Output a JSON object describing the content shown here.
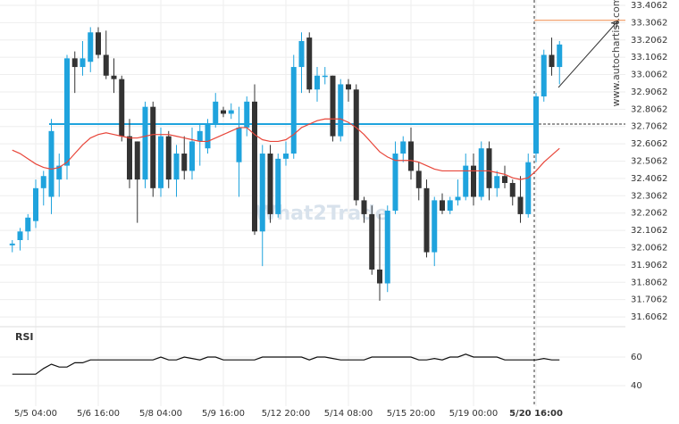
{
  "chart_data": {
    "type": "candlestick",
    "categories": [
      null,
      null,
      null,
      "5/5 04:00",
      null,
      null,
      null,
      null,
      null,
      null,
      null,
      "5/6 16:00",
      null,
      null,
      null,
      null,
      null,
      null,
      null,
      "5/8 04:00",
      null,
      null,
      null,
      null,
      null,
      null,
      null,
      "5/9 16:00",
      null,
      null,
      null,
      null,
      null,
      null,
      null,
      "5/12 20:00",
      null,
      null,
      null,
      null,
      null,
      null,
      null,
      "5/14 08:00",
      null,
      null,
      null,
      null,
      null,
      null,
      null,
      "5/15 20:00",
      null,
      null,
      null,
      null,
      null,
      null,
      null,
      "5/19 00:00",
      null,
      null,
      null,
      null,
      null,
      null,
      null,
      "5/20 16:00",
      null,
      null,
      null
    ],
    "open": [
      32.02,
      32.05,
      32.1,
      32.16,
      32.35,
      32.3,
      32.4,
      32.48,
      33.1,
      33.05,
      33.08,
      33.25,
      33.12,
      33.0,
      32.98,
      32.65,
      32.62,
      32.4,
      32.82,
      32.35,
      32.65,
      32.4,
      32.55,
      32.45,
      32.62,
      32.58,
      32.72,
      32.8,
      32.78,
      32.5,
      32.7,
      32.85,
      32.1,
      32.55,
      32.2,
      32.52,
      32.55,
      33.05,
      33.22,
      32.92,
      33.0,
      33.0,
      32.65,
      32.95,
      32.92,
      32.28,
      32.2,
      31.88,
      31.8,
      32.22,
      32.55,
      32.62,
      32.45,
      32.35,
      31.98,
      32.28,
      32.22,
      32.28,
      32.3,
      32.48,
      32.3,
      32.58,
      32.35,
      32.42,
      32.38,
      32.3,
      32.2,
      32.55,
      32.88,
      33.12,
      33.05
    ],
    "high": [
      32.05,
      32.12,
      32.2,
      32.4,
      32.45,
      32.75,
      32.55,
      33.12,
      33.14,
      33.2,
      33.28,
      33.28,
      33.26,
      33.1,
      33.0,
      32.75,
      32.62,
      32.85,
      32.85,
      32.7,
      32.68,
      32.6,
      32.65,
      32.7,
      32.72,
      32.75,
      32.9,
      32.82,
      32.84,
      32.82,
      32.88,
      32.95,
      32.6,
      32.6,
      32.55,
      32.62,
      33.12,
      33.25,
      33.25,
      33.05,
      33.05,
      33.0,
      32.98,
      32.98,
      32.95,
      32.3,
      32.25,
      32.2,
      32.25,
      32.62,
      32.65,
      32.7,
      32.5,
      32.4,
      32.3,
      32.32,
      32.3,
      32.4,
      32.55,
      32.55,
      32.62,
      32.62,
      32.45,
      32.48,
      32.4,
      32.42,
      32.55,
      32.9,
      33.15,
      33.22,
      33.2
    ],
    "low": [
      31.98,
      31.99,
      32.05,
      32.12,
      32.25,
      32.2,
      32.3,
      32.4,
      32.9,
      33.0,
      33.02,
      33.1,
      32.98,
      32.9,
      32.62,
      32.35,
      32.15,
      32.35,
      32.3,
      32.3,
      32.35,
      32.3,
      32.4,
      32.4,
      32.48,
      32.55,
      32.7,
      32.76,
      32.75,
      32.3,
      32.65,
      32.08,
      31.9,
      32.15,
      32.18,
      32.48,
      32.52,
      32.9,
      32.9,
      32.85,
      32.95,
      32.62,
      32.62,
      32.85,
      32.25,
      32.15,
      31.85,
      31.7,
      31.75,
      32.2,
      32.5,
      32.4,
      32.28,
      31.95,
      31.9,
      32.2,
      32.2,
      32.25,
      32.28,
      32.25,
      32.28,
      32.28,
      32.3,
      32.35,
      32.25,
      32.15,
      32.18,
      32.5,
      32.85,
      33.0,
      32.95
    ],
    "close": [
      32.03,
      32.1,
      32.18,
      32.35,
      32.42,
      32.68,
      32.48,
      33.1,
      33.05,
      33.1,
      33.25,
      33.12,
      33.0,
      32.98,
      32.65,
      32.4,
      32.4,
      32.82,
      32.35,
      32.65,
      32.4,
      32.55,
      32.45,
      32.62,
      32.68,
      32.72,
      32.85,
      32.78,
      32.8,
      32.7,
      32.85,
      32.1,
      32.55,
      32.2,
      32.52,
      32.55,
      33.05,
      33.2,
      32.92,
      33.0,
      33.0,
      32.65,
      32.95,
      32.92,
      32.28,
      32.2,
      31.88,
      31.8,
      32.22,
      32.55,
      32.62,
      32.45,
      32.35,
      31.98,
      32.28,
      32.22,
      32.28,
      32.3,
      32.48,
      32.3,
      32.58,
      32.35,
      32.42,
      32.38,
      32.3,
      32.2,
      32.5,
      32.88,
      33.12,
      33.05,
      33.18
    ],
    "moving_average": [
      32.57,
      32.55,
      32.52,
      32.49,
      32.47,
      32.46,
      32.47,
      32.5,
      32.55,
      32.6,
      32.64,
      32.66,
      32.67,
      32.66,
      32.65,
      32.64,
      32.64,
      32.65,
      32.66,
      32.66,
      32.66,
      32.65,
      32.64,
      32.63,
      32.62,
      32.62,
      32.64,
      32.66,
      32.68,
      32.7,
      32.7,
      32.66,
      32.63,
      32.62,
      32.62,
      32.63,
      32.66,
      32.7,
      32.72,
      32.74,
      32.75,
      32.75,
      32.75,
      32.73,
      32.7,
      32.66,
      32.61,
      32.56,
      32.53,
      32.51,
      32.51,
      32.51,
      32.5,
      32.48,
      32.46,
      32.45,
      32.45,
      32.45,
      32.45,
      32.45,
      32.45,
      32.45,
      32.44,
      32.43,
      32.41,
      32.4,
      32.41,
      32.45,
      32.5,
      32.54,
      32.58
    ],
    "up_color": "#1fa3dd",
    "down_color": "#333333",
    "ma_color": "#e8463a",
    "ylim": [
      31.555,
      33.437
    ],
    "yticks": [
      33.4062,
      33.3062,
      33.2062,
      33.1062,
      33.0062,
      32.9062,
      32.8062,
      32.7062,
      32.6062,
      32.5062,
      32.4062,
      32.3062,
      32.2062,
      32.1062,
      32.0062,
      31.9062,
      31.8062,
      31.7062,
      31.6062
    ],
    "support_level": 32.72,
    "target_level": 33.32,
    "rsi_title": "RSI",
    "rsi": [
      48,
      48,
      48,
      48,
      52,
      55,
      53,
      53,
      56,
      56,
      58,
      58,
      58,
      58,
      58,
      58,
      58,
      58,
      58,
      60,
      58,
      58,
      60,
      59,
      58,
      60,
      60,
      58,
      58,
      58,
      58,
      58,
      60,
      60,
      60,
      60,
      60,
      60,
      58,
      60,
      60,
      59,
      58,
      58,
      58,
      58,
      60,
      60,
      60,
      60,
      60,
      60,
      58,
      58,
      59,
      58,
      60,
      60,
      62,
      60,
      60,
      60,
      60,
      58,
      58,
      58,
      58,
      58,
      59,
      58,
      58
    ],
    "rsi_ylim": [
      30,
      80
    ],
    "rsi_yticks": [
      60,
      40
    ],
    "watermark": "What2Trade",
    "site": "www.autochartist.com",
    "grid": true
  }
}
